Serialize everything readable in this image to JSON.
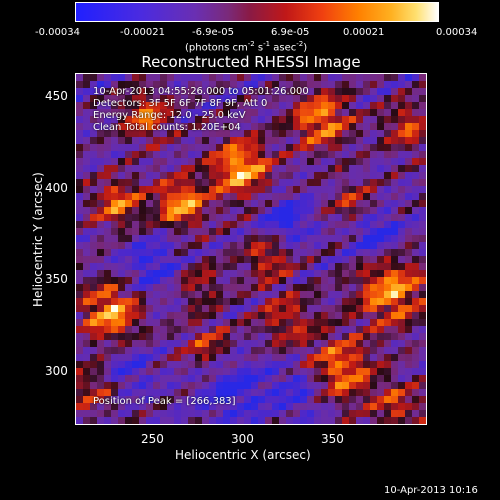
{
  "colorbar": {
    "tick_labels": [
      "-0.00034",
      "-0.00021",
      "-6.9e-05",
      "6.9e-05",
      "0.00021",
      "0.00034"
    ],
    "unit_main": "(photons cm",
    "unit_exp1": "-2",
    "unit_mid1": " s",
    "unit_exp2": "-1",
    "unit_mid2": " asec",
    "unit_exp3": "-2",
    "unit_end": ")"
  },
  "title": "Reconstructed RHESSI Image",
  "overlay": {
    "time_range": "10-Apr-2013 04:55:26.000 to 05:01:26.000",
    "detectors": "Detectors: 3F 5F 6F 7F 8F 9F, Att 0",
    "energy_range": "Energy Range: 12.0 - 25.0 keV",
    "method": "Clean    Total counts: 1.20E+04",
    "peak": "Position of Peak = [266,383]"
  },
  "axes": {
    "xlabel": "Heliocentric X (arcsec)",
    "ylabel": "Heliocentric Y (arcsec)",
    "xticks": [
      "250",
      "300",
      "350"
    ],
    "yticks": [
      "450",
      "400",
      "350",
      "300"
    ],
    "xlim": [
      208,
      402
    ],
    "ylim": [
      279,
      473
    ]
  },
  "timestamp": "10-Apr-2013 10:16",
  "colors": {
    "background": "#000000",
    "foreground": "#ffffff"
  }
}
